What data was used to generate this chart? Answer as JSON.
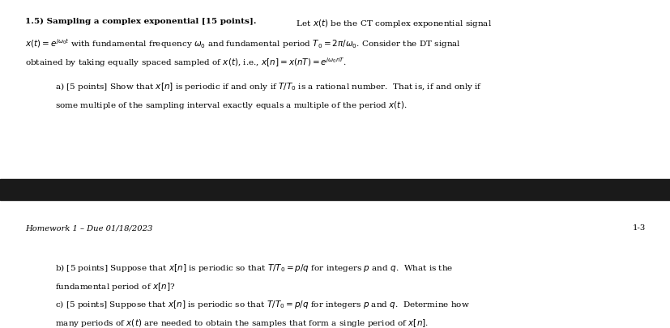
{
  "background_color": "#ffffff",
  "dark_bar_color": "#1a1a1a",
  "font_size_main": 7.5,
  "font_size_footer": 7.2,
  "indent_main": 0.038,
  "indent_parts": 0.082,
  "title_bold": "1.5) Sampling a complex exponential [15 points].",
  "title_rest": "  Let $x(t)$ be the CT complex exponential signal",
  "line2": "$x(t) = e^{j\\omega_0 t}$ with fundamental frequency $\\omega_0$ and fundamental period $T_0 = 2\\pi/\\omega_0$. Consider the DT signal",
  "line3": "obtained by taking equally spaced sampled of $x(t)$, i.e., $x[n] = x(nT) = e^{j\\omega_0 nT}$.",
  "part_a_line1": "a) [5 points] Show that $x[n]$ is periodic if and only if $T/T_0$ is a rational number.  That is, if and only if",
  "part_a_line2": "some multiple of the sampling interval exactly equals a multiple of the period $x(t)$.",
  "footer_left": "Homework 1 – Due 01/18/2023",
  "footer_right": "1-3",
  "part_b_line1": "b) [5 points] Suppose that $x[n]$ is periodic so that $T/T_0 = p/q$ for integers $p$ and $q$.  What is the",
  "part_b_line2": "fundamental period of $x[n]$?",
  "part_c_line1": "c) [5 points] Suppose that $x[n]$ is periodic so that $T/T_0 = p/q$ for integers $p$ and $q$.  Determine how",
  "part_c_line2": "many periods of $x(t)$ are needed to obtain the samples that form a single period of $x[n]$."
}
